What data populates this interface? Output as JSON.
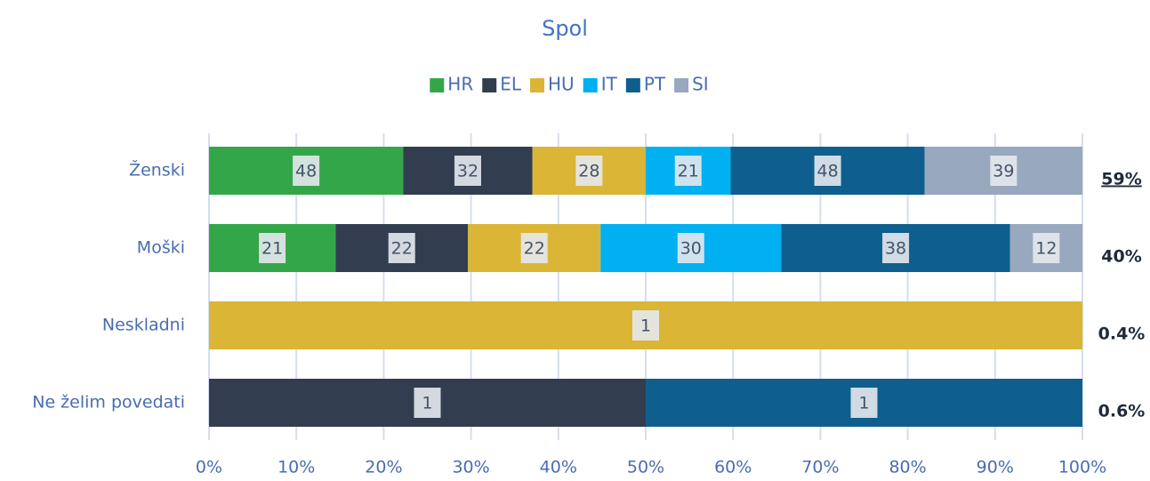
{
  "chart_data": {
    "type": "bar",
    "orientation": "horizontal",
    "stacked": "percent",
    "title": "Spol",
    "categories": [
      "Ženski",
      "Moški",
      "Neskladni",
      "Ne želim povedati"
    ],
    "series": [
      {
        "name": "HR",
        "color": "#34a64a",
        "values": [
          48,
          21,
          null,
          null
        ]
      },
      {
        "name": "EL",
        "color": "#323e4f",
        "values": [
          32,
          22,
          null,
          1
        ]
      },
      {
        "name": "HU",
        "color": "#dbb536",
        "values": [
          28,
          22,
          1,
          null
        ]
      },
      {
        "name": "IT",
        "color": "#00b0f0",
        "values": [
          21,
          30,
          null,
          null
        ]
      },
      {
        "name": "PT",
        "color": "#0e5f8d",
        "values": [
          48,
          38,
          null,
          1
        ]
      },
      {
        "name": "SI",
        "color": "#97a8bf",
        "values": [
          39,
          12,
          null,
          null
        ]
      }
    ],
    "row_annotations": [
      "59%",
      "40%",
      "0.4%",
      "0.6%"
    ],
    "xlim": [
      0,
      100
    ],
    "xticks": [
      {
        "value": 0,
        "label": "0%"
      },
      {
        "value": 10,
        "label": "10%"
      },
      {
        "value": 20,
        "label": "20%"
      },
      {
        "value": 30,
        "label": "30%"
      },
      {
        "value": 40,
        "label": "40%"
      },
      {
        "value": 50,
        "label": "50%"
      },
      {
        "value": 60,
        "label": "60%"
      },
      {
        "value": 70,
        "label": "70%"
      },
      {
        "value": 80,
        "label": "80%"
      },
      {
        "value": 90,
        "label": "90%"
      },
      {
        "value": 100,
        "label": "100%"
      }
    ],
    "grid": true,
    "legend": "top"
  }
}
